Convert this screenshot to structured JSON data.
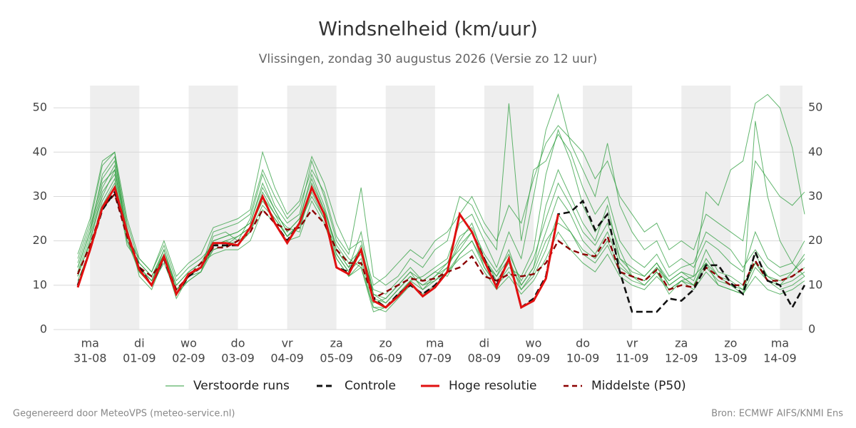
{
  "chart_data": {
    "type": "line",
    "title": "Windsnelheid (km/uur)",
    "subtitle": "Vlissingen, zondag 30 augustus 2026 (Versie zo 12 uur)",
    "categories": [
      null,
      "31-08",
      null,
      null,
      null,
      "01-09",
      null,
      null,
      null,
      "02-09",
      null,
      null,
      null,
      "03-09",
      null,
      null,
      null,
      "04-09",
      null,
      null,
      null,
      "05-09",
      null,
      null,
      null,
      "06-09",
      null,
      null,
      null,
      "07-09",
      null,
      null,
      null,
      "08-09",
      null,
      null,
      null,
      "09-09",
      null,
      null,
      null,
      "10-09",
      null,
      null,
      null,
      "11-09",
      null,
      null,
      null,
      "12-09",
      null,
      null,
      null,
      "13-09",
      null,
      null,
      null,
      "14-09",
      null,
      null
    ],
    "weekdays": [
      null,
      "ma",
      null,
      null,
      null,
      "di",
      null,
      null,
      null,
      "wo",
      null,
      null,
      null,
      "do",
      null,
      null,
      null,
      "vr",
      null,
      null,
      null,
      "za",
      null,
      null,
      null,
      "zo",
      null,
      null,
      null,
      "ma",
      null,
      null,
      null,
      "di",
      null,
      null,
      null,
      "wo",
      null,
      null,
      null,
      "do",
      null,
      null,
      null,
      "vr",
      null,
      null,
      null,
      "za",
      null,
      null,
      null,
      "zo",
      null,
      null,
      null,
      "ma",
      null,
      null
    ],
    "ylim": [
      0,
      55
    ],
    "yticks": [
      0,
      10,
      20,
      30,
      40,
      50
    ],
    "grid": true,
    "ensemble": {
      "name": "Verstoorde runs",
      "color": "#2e9e3e",
      "members": [
        [
          14,
          22,
          35,
          39,
          24,
          15,
          12,
          18,
          10,
          13,
          15,
          20,
          21,
          22,
          24,
          33,
          27,
          22,
          25,
          35,
          28,
          18,
          14,
          22,
          8,
          6,
          9,
          12,
          10,
          11,
          14,
          20,
          24,
          16,
          12,
          18,
          10,
          14,
          28,
          36,
          30,
          24,
          20,
          28,
          16,
          14,
          12,
          15,
          10,
          12,
          10,
          16,
          12,
          11,
          9,
          17,
          12,
          10,
          13,
          16
        ],
        [
          12,
          20,
          30,
          36,
          22,
          14,
          11,
          17,
          9,
          12,
          14,
          18,
          19,
          21,
          23,
          29,
          25,
          21,
          24,
          30,
          25,
          17,
          13,
          16,
          6,
          7,
          10,
          13,
          9,
          12,
          15,
          18,
          22,
          14,
          10,
          14,
          12,
          18,
          35,
          45,
          38,
          28,
          22,
          26,
          18,
          12,
          10,
          13,
          8,
          11,
          12,
          15,
          10,
          9,
          8,
          14,
          11,
          9,
          10,
          12
        ],
        [
          16,
          24,
          37,
          40,
          20,
          13,
          10,
          15,
          8,
          11,
          13,
          21,
          22,
          20,
          25,
          35,
          28,
          24,
          26,
          38,
          30,
          20,
          16,
          14,
          4,
          5,
          8,
          11,
          12,
          14,
          16,
          24,
          26,
          20,
          14,
          22,
          16,
          30,
          45,
          53,
          42,
          36,
          30,
          42,
          28,
          22,
          18,
          20,
          14,
          16,
          14,
          20,
          18,
          15,
          13,
          22,
          16,
          14,
          15,
          20
        ],
        [
          13,
          19,
          28,
          33,
          21,
          16,
          13,
          19,
          11,
          14,
          16,
          19,
          20,
          19,
          22,
          30,
          26,
          23,
          22,
          33,
          27,
          19,
          15,
          18,
          9,
          8,
          11,
          14,
          11,
          13,
          12,
          17,
          20,
          15,
          12,
          16,
          9,
          13,
          20,
          24,
          22,
          18,
          16,
          20,
          14,
          12,
          11,
          14,
          11,
          13,
          11,
          18,
          13,
          12,
          10,
          15,
          12,
          11,
          12,
          14
        ],
        [
          15,
          23,
          34,
          38,
          23,
          12,
          9,
          16,
          7,
          12,
          14,
          22,
          23,
          24,
          26,
          36,
          30,
          25,
          28,
          36,
          31,
          21,
          17,
          32,
          12,
          10,
          12,
          16,
          14,
          18,
          20,
          30,
          28,
          22,
          18,
          51,
          20,
          36,
          38,
          44,
          40,
          32,
          26,
          30,
          20,
          16,
          14,
          17,
          12,
          14,
          15,
          22,
          20,
          18,
          14,
          18,
          14,
          12,
          13,
          17
        ],
        [
          11,
          18,
          29,
          34,
          19,
          15,
          12,
          17,
          10,
          13,
          15,
          17,
          18,
          18,
          20,
          27,
          24,
          20,
          21,
          29,
          24,
          16,
          12,
          15,
          5,
          4,
          7,
          10,
          8,
          10,
          13,
          16,
          18,
          13,
          9,
          12,
          8,
          11,
          16,
          22,
          18,
          15,
          13,
          17,
          12,
          10,
          9,
          12,
          9,
          11,
          9,
          13,
          10,
          9,
          8,
          12,
          9,
          8,
          9,
          11
        ],
        [
          17,
          25,
          38,
          40,
          25,
          16,
          13,
          20,
          12,
          15,
          17,
          23,
          24,
          25,
          27,
          40,
          32,
          26,
          29,
          39,
          33,
          24,
          18,
          20,
          10,
          12,
          15,
          18,
          16,
          20,
          22,
          26,
          30,
          24,
          20,
          28,
          24,
          34,
          42,
          46,
          43,
          40,
          34,
          38,
          30,
          26,
          22,
          24,
          18,
          20,
          18,
          26,
          24,
          22,
          20,
          38,
          34,
          30,
          28,
          31
        ],
        [
          13,
          21,
          32,
          37,
          22,
          14,
          11,
          18,
          9,
          12,
          14,
          20,
          21,
          22,
          24,
          32,
          27,
          22,
          25,
          34,
          27,
          18,
          14,
          17,
          7,
          6,
          9,
          12,
          10,
          12,
          14,
          19,
          22,
          16,
          11,
          15,
          10,
          14,
          22,
          30,
          26,
          20,
          17,
          22,
          15,
          12,
          11,
          14,
          10,
          12,
          10,
          15,
          12,
          10,
          9,
          15,
          11,
          10,
          11,
          13
        ],
        [
          14,
          22,
          33,
          36,
          21,
          13,
          10,
          16,
          9,
          11,
          13,
          19,
          20,
          21,
          23,
          31,
          26,
          21,
          24,
          32,
          26,
          17,
          13,
          19,
          8,
          7,
          10,
          13,
          11,
          13,
          15,
          21,
          23,
          17,
          13,
          17,
          11,
          16,
          25,
          33,
          28,
          22,
          19,
          24,
          16,
          13,
          12,
          15,
          11,
          13,
          12,
          31,
          28,
          36,
          38,
          51,
          53,
          50,
          41,
          26
        ],
        [
          12,
          20,
          31,
          35,
          20,
          14,
          11,
          17,
          8,
          12,
          13,
          18,
          19,
          20,
          22,
          28,
          25,
          21,
          23,
          31,
          25,
          16,
          12,
          14,
          5,
          5,
          8,
          11,
          9,
          11,
          13,
          17,
          20,
          14,
          10,
          13,
          9,
          12,
          18,
          26,
          22,
          17,
          15,
          19,
          13,
          11,
          10,
          13,
          9,
          11,
          10,
          14,
          11,
          10,
          8,
          47,
          30,
          20,
          15,
          12
        ]
      ]
    },
    "series": [
      {
        "name": "Controle",
        "color": "#111111",
        "values": [
          10,
          18,
          27,
          31,
          22,
          14,
          10,
          16,
          8,
          12,
          14,
          19,
          19,
          19,
          23,
          30,
          24,
          20,
          24,
          32,
          26,
          14,
          13,
          18,
          7,
          5,
          8,
          10,
          8,
          10,
          13,
          26,
          22,
          16,
          10,
          16,
          5,
          7,
          12,
          26,
          26.5,
          29,
          22.5,
          26,
          13,
          4,
          4,
          4,
          7,
          6.5,
          9,
          14.5,
          14.5,
          10.5,
          8,
          17.5,
          11,
          10,
          5,
          10
        ]
      },
      {
        "name": "Hoge resolutie",
        "color": "#e01010",
        "values": [
          9.5,
          18,
          27.5,
          32,
          22,
          13.5,
          10,
          16.5,
          8,
          12.5,
          14,
          19.5,
          19.5,
          19,
          23,
          30,
          24,
          19.5,
          24,
          32,
          26,
          14,
          12.5,
          18,
          6.5,
          5,
          7.5,
          10.5,
          7.5,
          9.5,
          13,
          26,
          22,
          15.5,
          9.5,
          16,
          5,
          6.5,
          11.5,
          26,
          null,
          null,
          null,
          null,
          null,
          null,
          null,
          null,
          null,
          null,
          null,
          null,
          null,
          null,
          null,
          null,
          null,
          null,
          null,
          null
        ]
      },
      {
        "name": "Middelste (P50)",
        "color": "#8b0000",
        "values": [
          12.5,
          19,
          27.5,
          30.5,
          21,
          14,
          12,
          16,
          9,
          12,
          15,
          18.5,
          18.5,
          20,
          22,
          27,
          24,
          22.5,
          23,
          27,
          24,
          18,
          15,
          15,
          7,
          8.5,
          10,
          11.5,
          11,
          11.5,
          13,
          14,
          16.5,
          12,
          11,
          12.5,
          12,
          12.5,
          15,
          20,
          18,
          17,
          16.5,
          21,
          13,
          12,
          11,
          13.5,
          9,
          10,
          9.5,
          14,
          12,
          10,
          10,
          15.5,
          11,
          11,
          12,
          14
        ]
      }
    ],
    "footer_left": "Gegenereerd door MeteoVPS (meteo-service.nl)",
    "footer_right": "Bron: ECMWF AIFS/KNMI Ens"
  }
}
